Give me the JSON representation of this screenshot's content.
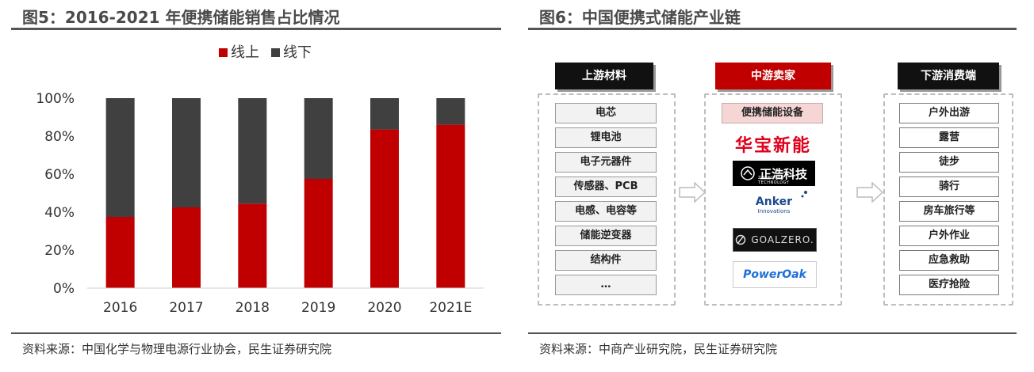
{
  "left": {
    "title": "图5：2016-2021 年便携储能销售占比情况",
    "source": "资料来源：中国化学与物理电源行业协会，民生证券研究院"
  },
  "chart_data": {
    "type": "bar",
    "stacked": true,
    "categories": [
      "2016",
      "2017",
      "2018",
      "2019",
      "2020",
      "2021E"
    ],
    "series": [
      {
        "name": "线上",
        "color": "#c00000",
        "values": [
          37.5,
          42.5,
          44.5,
          57.5,
          83.5,
          86
        ]
      },
      {
        "name": "线下",
        "color": "#404040",
        "values": [
          62.5,
          57.5,
          55.5,
          42.5,
          16.5,
          14
        ]
      }
    ],
    "ylim": [
      0,
      100
    ],
    "yticks": [
      "0%",
      "20%",
      "40%",
      "60%",
      "80%",
      "100%"
    ],
    "ytick_values": [
      0,
      20,
      40,
      60,
      80,
      100
    ],
    "legend_position": "top-center"
  },
  "right": {
    "title": "图6：中国便携式储能产业链",
    "source": "资料来源：中商产业研究院，民生证券研究院",
    "upstream": {
      "header": "上游材料",
      "items": [
        "电芯",
        "锂电池",
        "电子元器件",
        "传感器、PCB",
        "电感、电容等",
        "储能逆变器",
        "结构件",
        "…"
      ]
    },
    "midstream": {
      "header": "中游卖家",
      "items": [
        "便携储能设备"
      ],
      "logos": {
        "huabao": "华宝新能",
        "zhenghao": "正浩科技",
        "zhenghao_sub": "ZHENGHAO TECHNOLOGY",
        "anker": "Anker",
        "anker_sub": "Innovations",
        "goalzero": "GOALZERO.",
        "poweroak": "PowerOak"
      }
    },
    "downstream": {
      "header": "下游消费端",
      "items": [
        "户外出游",
        "露营",
        "徒步",
        "骑行",
        "房车旅行等",
        "户外作业",
        "应急救助",
        "医疗抢险"
      ]
    }
  }
}
